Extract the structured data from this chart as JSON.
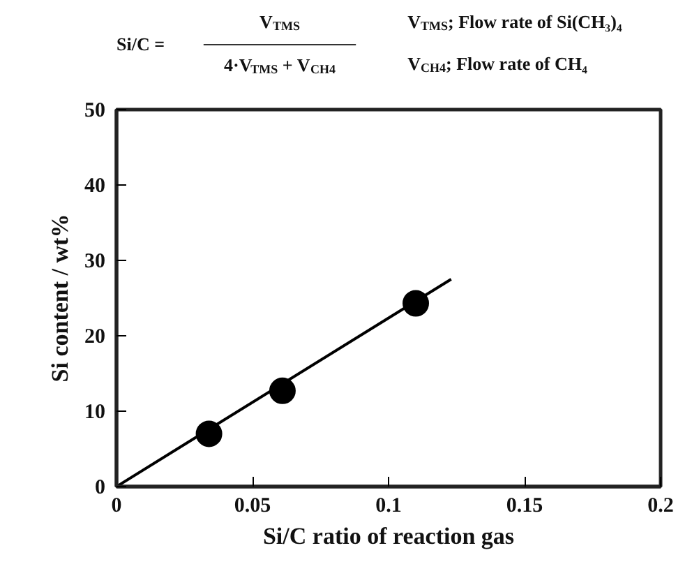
{
  "chart_data": {
    "type": "scatter",
    "xlabel": "Si/C ratio of reaction gas",
    "ylabel": "Si content / wt%",
    "annotations": [
      "Si/C =",
      "V$_{TMS}$",
      "4·V$_{TMS}$ + V$_{CH4}$",
      "V$_{TMS}$; Flow rate of Si(CH₃)₄",
      "V$_{CH4}$; Flow rate of CH₄"
    ],
    "xlim": [
      0,
      0.2
    ],
    "xticks": [
      0,
      0.05,
      0.1,
      0.15,
      0.2
    ],
    "ylim": [
      0,
      50
    ],
    "yticks": [
      0,
      10,
      20,
      30,
      40,
      50
    ],
    "grid": false,
    "marker": "circle",
    "series": [
      {
        "color": "#000000",
        "x": [
          0.034,
          0.061,
          0.11
        ],
        "values": [
          7.0,
          12.7,
          24.3
        ]
      },
      {
        "type": "line",
        "color": "#000000",
        "line_style": "solid",
        "marker": "none",
        "x": [
          0,
          0.123
        ],
        "values": [
          0,
          27.5
        ]
      }
    ]
  }
}
